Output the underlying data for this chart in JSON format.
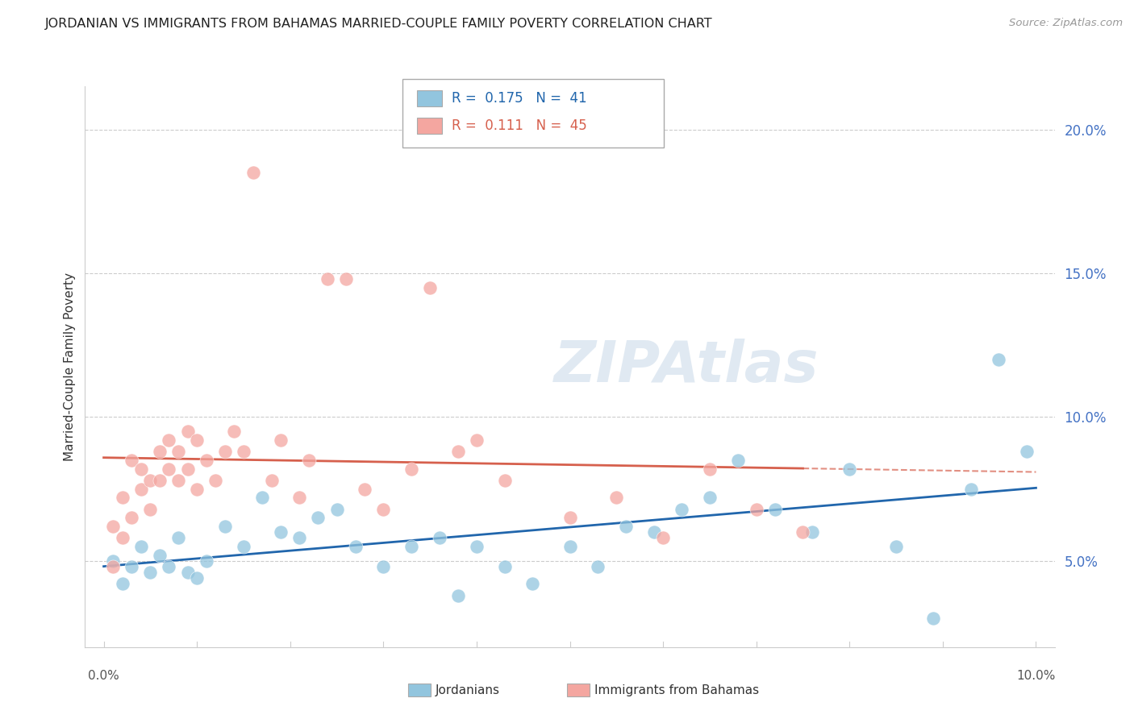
{
  "title": "JORDANIAN VS IMMIGRANTS FROM BAHAMAS MARRIED-COUPLE FAMILY POVERTY CORRELATION CHART",
  "source": "Source: ZipAtlas.com",
  "ylabel": "Married-Couple Family Poverty",
  "right_yticks": [
    "5.0%",
    "10.0%",
    "15.0%",
    "20.0%"
  ],
  "right_ytick_vals": [
    0.05,
    0.1,
    0.15,
    0.2
  ],
  "legend_blue_r": "0.175",
  "legend_blue_n": "41",
  "legend_pink_r": "0.111",
  "legend_pink_n": "45",
  "legend_label_blue": "Jordanians",
  "legend_label_pink": "Immigrants from Bahamas",
  "blue_color": "#92C5DE",
  "pink_color": "#F4A6A0",
  "blue_line_color": "#2166AC",
  "pink_line_color": "#D6604D",
  "watermark": "ZIPAtlas",
  "blue_scatter_x": [
    0.001,
    0.002,
    0.003,
    0.004,
    0.005,
    0.006,
    0.007,
    0.008,
    0.009,
    0.01,
    0.011,
    0.013,
    0.015,
    0.017,
    0.019,
    0.021,
    0.023,
    0.025,
    0.027,
    0.03,
    0.033,
    0.036,
    0.038,
    0.04,
    0.043,
    0.046,
    0.05,
    0.053,
    0.056,
    0.059,
    0.062,
    0.065,
    0.068,
    0.072,
    0.076,
    0.08,
    0.085,
    0.089,
    0.093,
    0.096,
    0.099
  ],
  "blue_scatter_y": [
    0.05,
    0.042,
    0.048,
    0.055,
    0.046,
    0.052,
    0.048,
    0.058,
    0.046,
    0.044,
    0.05,
    0.062,
    0.055,
    0.072,
    0.06,
    0.058,
    0.065,
    0.068,
    0.055,
    0.048,
    0.055,
    0.058,
    0.038,
    0.055,
    0.048,
    0.042,
    0.055,
    0.048,
    0.062,
    0.06,
    0.068,
    0.072,
    0.085,
    0.068,
    0.06,
    0.082,
    0.055,
    0.03,
    0.075,
    0.12,
    0.088
  ],
  "pink_scatter_x": [
    0.001,
    0.001,
    0.002,
    0.002,
    0.003,
    0.003,
    0.004,
    0.004,
    0.005,
    0.005,
    0.006,
    0.006,
    0.007,
    0.007,
    0.008,
    0.008,
    0.009,
    0.009,
    0.01,
    0.01,
    0.011,
    0.012,
    0.013,
    0.014,
    0.015,
    0.016,
    0.018,
    0.019,
    0.021,
    0.022,
    0.024,
    0.026,
    0.028,
    0.03,
    0.033,
    0.035,
    0.038,
    0.04,
    0.043,
    0.05,
    0.055,
    0.06,
    0.065,
    0.07,
    0.075
  ],
  "pink_scatter_y": [
    0.048,
    0.062,
    0.058,
    0.072,
    0.065,
    0.085,
    0.075,
    0.082,
    0.068,
    0.078,
    0.088,
    0.078,
    0.092,
    0.082,
    0.088,
    0.078,
    0.095,
    0.082,
    0.075,
    0.092,
    0.085,
    0.078,
    0.088,
    0.095,
    0.088,
    0.185,
    0.078,
    0.092,
    0.072,
    0.085,
    0.148,
    0.148,
    0.075,
    0.068,
    0.082,
    0.145,
    0.088,
    0.092,
    0.078,
    0.065,
    0.072,
    0.058,
    0.082,
    0.068,
    0.06
  ],
  "xmin": -0.002,
  "xmax": 0.102,
  "ymin": 0.02,
  "ymax": 0.215
}
